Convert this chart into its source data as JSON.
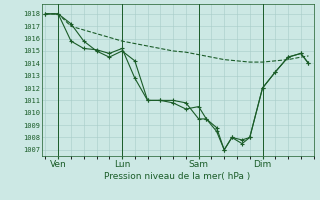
{
  "bg_color": "#cce8e4",
  "grid_color": "#a8ccc8",
  "line_color": "#1a5c28",
  "ylabel_text": "Pression niveau de la mer( hPa )",
  "yticks": [
    1007,
    1008,
    1009,
    1010,
    1011,
    1012,
    1013,
    1014,
    1015,
    1016,
    1017,
    1018
  ],
  "ylim": [
    1006.5,
    1018.8
  ],
  "xlim": [
    -0.15,
    10.5
  ],
  "xtick_labels": [
    "Ven",
    "Lun",
    "Sam",
    "Dim"
  ],
  "xtick_positions": [
    0.5,
    3.0,
    6.0,
    8.5
  ],
  "vlines": [
    0.5,
    3.0,
    6.0,
    8.5
  ],
  "series": [
    {
      "x": [
        0.0,
        0.5,
        1.0,
        1.5,
        2.0,
        2.5,
        3.0,
        3.5,
        4.0,
        4.5,
        5.0,
        5.5,
        6.0,
        6.3,
        6.7,
        7.0,
        7.3,
        7.7,
        8.0,
        8.5,
        9.0,
        9.5,
        10.0,
        10.3
      ],
      "y": [
        1018,
        1018,
        1017.2,
        1015.8,
        1015,
        1014.5,
        1015.0,
        1014.2,
        1011.0,
        1011.0,
        1010.8,
        1010.3,
        1010.5,
        1009.5,
        1008.5,
        1007.0,
        1008.0,
        1007.8,
        1008.0,
        1012.0,
        1013.3,
        1014.5,
        1014.8,
        1014.0
      ],
      "marker": "+"
    },
    {
      "x": [
        0.0,
        0.5,
        1.0,
        1.5,
        2.0,
        2.5,
        3.0,
        3.5,
        4.0,
        4.5,
        5.0,
        5.5,
        6.0,
        6.3,
        6.7,
        7.0,
        7.3,
        7.7,
        8.0,
        8.5,
        9.0,
        9.5,
        10.0,
        10.3
      ],
      "y": [
        1018,
        1018,
        1015.8,
        1015.2,
        1015.1,
        1014.8,
        1015.2,
        1012.8,
        1011.0,
        1011.0,
        1011.0,
        1010.8,
        1009.5,
        1009.5,
        1008.8,
        1007.0,
        1008.0,
        1007.5,
        1008.0,
        1012.0,
        1013.3,
        1014.5,
        1014.8,
        1014.0
      ],
      "marker": "+"
    },
    {
      "x": [
        0.0,
        0.5,
        1.0,
        1.5,
        2.0,
        2.5,
        3.0,
        3.5,
        4.0,
        4.5,
        5.0,
        5.5,
        6.0,
        6.5,
        7.0,
        7.5,
        8.0,
        8.5,
        9.0,
        9.5,
        10.0,
        10.3
      ],
      "y": [
        1018,
        1018,
        1017.0,
        1016.7,
        1016.4,
        1016.1,
        1015.8,
        1015.6,
        1015.4,
        1015.2,
        1015.0,
        1014.9,
        1014.7,
        1014.5,
        1014.3,
        1014.2,
        1014.1,
        1014.1,
        1014.2,
        1014.3,
        1014.5,
        1014.6
      ],
      "marker": ""
    }
  ]
}
